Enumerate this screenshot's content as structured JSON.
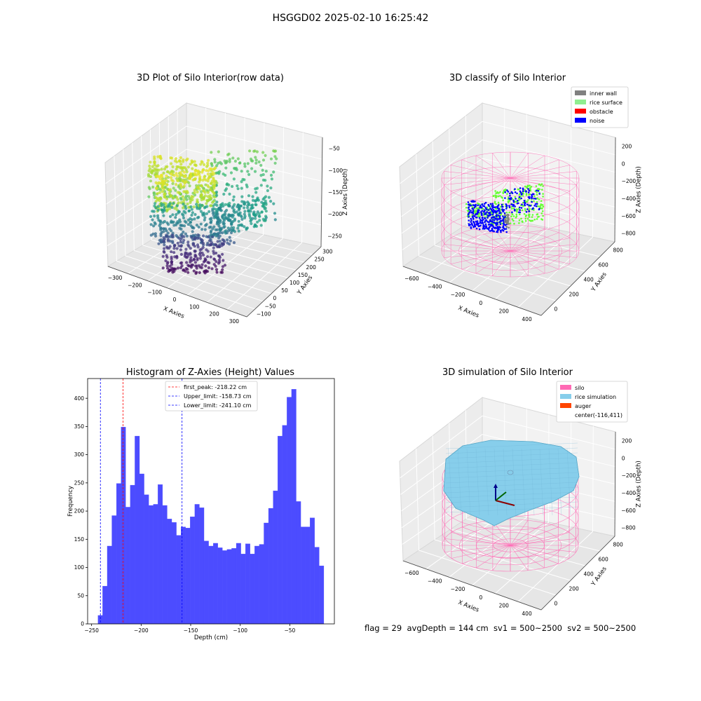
{
  "suptitle": "HSGGD02 2025-02-10 16:25:42",
  "footer": "flag = 29  avgDepth = 144 cm  sv1 = 500~2500  sv2 = 500~2500",
  "chart_data": [
    {
      "type": "scatter3d",
      "title": "3D Plot of Silo Interior(row data)",
      "xlabel": "X Axies",
      "ylabel": "Y Axies",
      "zlabel": "Z Axies (Depth)",
      "x_ticks": [
        "−300",
        "−200",
        "−100",
        "0",
        "100",
        "200",
        "300"
      ],
      "y_ticks": [
        "−100",
        "−50",
        "0",
        "50",
        "100",
        "150",
        "200",
        "250",
        "300"
      ],
      "z_ticks": [
        "−50",
        "−100",
        "−150",
        "−200",
        "−250"
      ],
      "colormap": "viridis"
    },
    {
      "type": "scatter3d",
      "title": "3D classify of Silo Interior",
      "xlabel": "X Axies",
      "ylabel": "Y Axies",
      "zlabel": "Z Axies (Depth)",
      "x_ticks": [
        "−600",
        "−400",
        "−200",
        "0",
        "200",
        "400"
      ],
      "y_ticks": [
        "0",
        "200",
        "400",
        "600",
        "800"
      ],
      "z_ticks": [
        "200",
        "0",
        "−200",
        "−400",
        "−600",
        "−800"
      ],
      "legend": [
        {
          "label": "inner wall",
          "color": "#808080"
        },
        {
          "label": "rice surface",
          "color": "#90ee90"
        },
        {
          "label": "obstacle",
          "color": "#ff0000"
        },
        {
          "label": "noise",
          "color": "#0000ff"
        }
      ],
      "legend_position": "top-right"
    },
    {
      "type": "bar",
      "title": "Histogram of Z-Axies (Height) Values",
      "xlabel": "Depth (cm)",
      "ylabel": "Frequency",
      "xlim": [
        -254,
        -5
      ],
      "ylim": [
        0,
        435
      ],
      "bin_start": -243.5,
      "bin_width": 4.65,
      "values": [
        15,
        67,
        138,
        192,
        249,
        349,
        207,
        246,
        333,
        266,
        229,
        210,
        212,
        247,
        210,
        186,
        180,
        157,
        172,
        170,
        190,
        212,
        206,
        147,
        138,
        143,
        135,
        130,
        132,
        134,
        143,
        124,
        142,
        124,
        138,
        141,
        179,
        205,
        236,
        333,
        352,
        402,
        416,
        217,
        172,
        172,
        188,
        136,
        103
      ],
      "bar_color": "#4c4cff",
      "x_ticks": [
        -250,
        -200,
        -150,
        -100,
        -50
      ],
      "x_tick_labels": [
        "−250",
        "−200",
        "−150",
        "−100",
        "−50"
      ],
      "y_ticks": [
        0,
        50,
        100,
        150,
        200,
        250,
        300,
        350,
        400
      ],
      "vlines": [
        {
          "x": -218.22,
          "label": "first_peak: -218.22 cm",
          "color": "#ff0000"
        },
        {
          "x": -158.73,
          "label": "Upper_limit: -158.73 cm",
          "color": "#0000ff"
        },
        {
          "x": -241.1,
          "label": "Lower_limit: -241.10 cm",
          "color": "#0000ff"
        }
      ],
      "legend_position": "upper-center"
    },
    {
      "type": "surface3d",
      "title": "3D simulation of Silo Interior",
      "xlabel": "X Axies",
      "ylabel": "Y Axies",
      "zlabel": "Z Axies (Depth)",
      "x_ticks": [
        "−600",
        "−400",
        "−200",
        "0",
        "200",
        "400"
      ],
      "y_ticks": [
        "0",
        "200",
        "400",
        "600",
        "800"
      ],
      "z_ticks": [
        "200",
        "0",
        "−200",
        "−400",
        "−600",
        "−800"
      ],
      "legend": [
        {
          "label": "silo",
          "color": "#ff69b4"
        },
        {
          "label": "rice simulation",
          "color": "#87ceeb"
        },
        {
          "label": "auger",
          "color": "#ff4500"
        },
        {
          "label": "center(-116,411)",
          "color": "none"
        }
      ],
      "legend_position": "top-right"
    }
  ]
}
